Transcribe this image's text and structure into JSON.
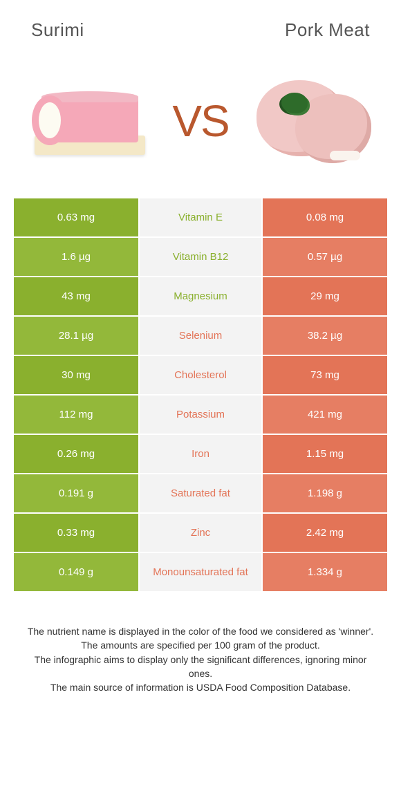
{
  "header": {
    "left_title": "Surimi",
    "right_title": "Pork meat",
    "vs_label": "VS",
    "vs_color": "#b9582e"
  },
  "colors": {
    "left_bar": "#8ab02e",
    "left_bar_alt": "#93b83a",
    "right_bar": "#e37457",
    "right_bar_alt": "#e67e63",
    "mid_bg": "#f3f3f3",
    "nutrient_left_text": "#8ab02e",
    "nutrient_right_text": "#e37457"
  },
  "nutrients": [
    {
      "name": "Vitamin E",
      "left": "0.63 mg",
      "right": "0.08 mg",
      "winner": "left"
    },
    {
      "name": "Vitamin B12",
      "left": "1.6 µg",
      "right": "0.57 µg",
      "winner": "left"
    },
    {
      "name": "Magnesium",
      "left": "43 mg",
      "right": "29 mg",
      "winner": "left"
    },
    {
      "name": "Selenium",
      "left": "28.1 µg",
      "right": "38.2 µg",
      "winner": "right"
    },
    {
      "name": "Cholesterol",
      "left": "30 mg",
      "right": "73 mg",
      "winner": "right"
    },
    {
      "name": "Potassium",
      "left": "112 mg",
      "right": "421 mg",
      "winner": "right"
    },
    {
      "name": "Iron",
      "left": "0.26 mg",
      "right": "1.15 mg",
      "winner": "right"
    },
    {
      "name": "Saturated fat",
      "left": "0.191 g",
      "right": "1.198 g",
      "winner": "right"
    },
    {
      "name": "Zinc",
      "left": "0.33 mg",
      "right": "2.42 mg",
      "winner": "right"
    },
    {
      "name": "Monounsaturated fat",
      "left": "0.149 g",
      "right": "1.334 g",
      "winner": "right"
    }
  ],
  "footnotes": [
    "The nutrient name is displayed in the color of the food we considered as 'winner'.",
    "The amounts are specified per 100 gram of the product.",
    "The infographic aims to display only the significant differences, ignoring minor ones.",
    "The main source of information is USDA Food Composition Database."
  ]
}
